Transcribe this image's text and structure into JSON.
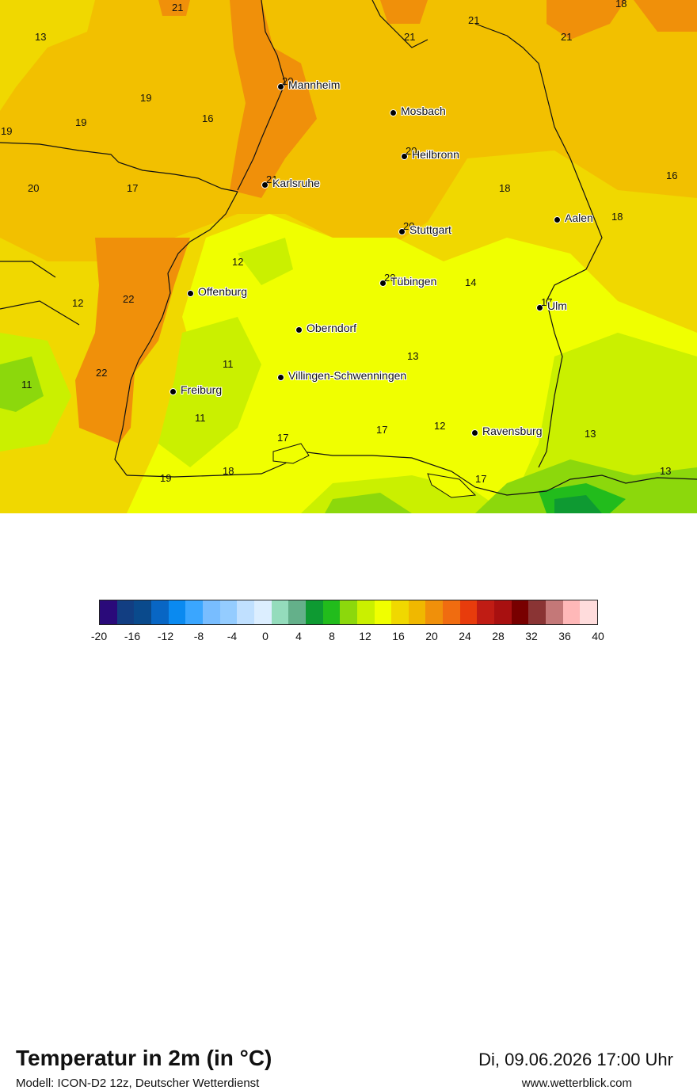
{
  "map": {
    "numbers": [
      {
        "value": "21"
      },
      {
        "value": "13"
      },
      {
        "value": "18"
      },
      {
        "value": "21"
      },
      {
        "value": "21"
      },
      {
        "value": "21"
      },
      {
        "value": "19"
      },
      {
        "value": "16"
      },
      {
        "value": "19"
      },
      {
        "value": "19"
      },
      {
        "value": "20"
      },
      {
        "value": "17"
      },
      {
        "value": "18"
      },
      {
        "value": "16"
      },
      {
        "value": "18"
      },
      {
        "value": "12"
      },
      {
        "value": "14"
      },
      {
        "value": "12"
      },
      {
        "value": "22"
      },
      {
        "value": "13"
      },
      {
        "value": "11"
      },
      {
        "value": "22"
      },
      {
        "value": "11"
      },
      {
        "value": "11"
      },
      {
        "value": "17"
      },
      {
        "value": "17"
      },
      {
        "value": "12"
      },
      {
        "value": "13"
      },
      {
        "value": "19"
      },
      {
        "value": "18"
      },
      {
        "value": "17"
      },
      {
        "value": "13"
      }
    ],
    "cities": [
      {
        "name": "Mannheim",
        "overlay": "20"
      },
      {
        "name": "Mosbach",
        "overlay": ""
      },
      {
        "name": "Heilbronn",
        "overlay": "20"
      },
      {
        "name": "Karlsruhe",
        "overlay": "21"
      },
      {
        "name": "Aalen",
        "overlay": ""
      },
      {
        "name": "Stuttgart",
        "overlay": "20"
      },
      {
        "name": "Tübingen",
        "overlay": "20"
      },
      {
        "name": "Offenburg",
        "overlay": ""
      },
      {
        "name": "Ulm",
        "overlay": "17"
      },
      {
        "name": "Oberndorf",
        "overlay": ""
      },
      {
        "name": "Villingen-Schwenningen",
        "overlay": ""
      },
      {
        "name": "Freiburg",
        "overlay": ""
      },
      {
        "name": "Ravensburg",
        "overlay": ""
      }
    ]
  },
  "footer": {
    "title": "Temperatur in 2m (in °C)",
    "subtitle": "Modell: ICON-D2 12z, Deutscher Wetterdienst",
    "datetime": "Di, 09.06.2026 17:00 Uhr",
    "site": "www.wetterblick.com"
  },
  "legend": {
    "colors": [
      "#2a0a7a",
      "#123e82",
      "#0a4a8c",
      "#0866c4",
      "#0a8af0",
      "#3aa6ff",
      "#78bdff",
      "#94ccff",
      "#c0e0ff",
      "#dceeff",
      "#94dcbc",
      "#64b08a",
      "#0e9a32",
      "#22bc1c",
      "#8cd80c",
      "#caf000",
      "#f0ff00",
      "#f0d800",
      "#f0b800",
      "#f0900a",
      "#f06c10",
      "#e83c0c",
      "#c01c14",
      "#a81010",
      "#780000",
      "#8a3434",
      "#c47878",
      "#ffb8b8",
      "#ffdcdc"
    ],
    "ticks": [
      "-20",
      "-16",
      "-12",
      "-8",
      "-4",
      "0",
      "4",
      "8",
      "12",
      "16",
      "20",
      "24",
      "28",
      "32",
      "36",
      "40"
    ]
  }
}
